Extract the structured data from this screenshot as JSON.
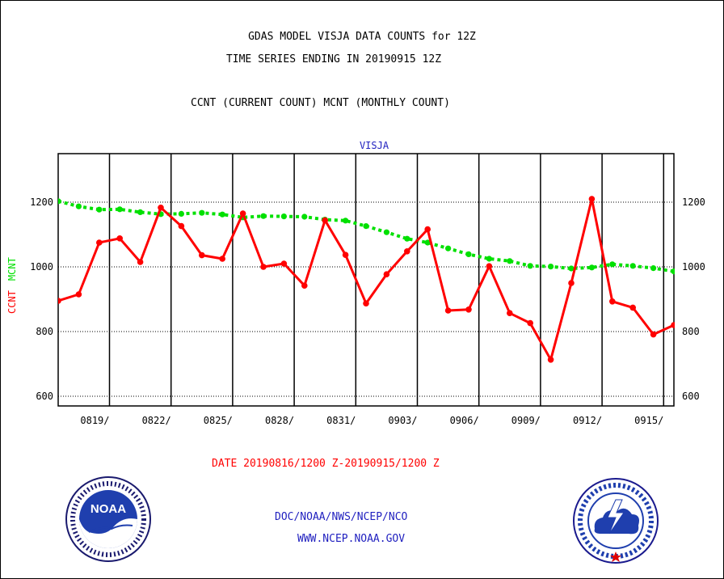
{
  "header": {
    "title_line1": "GDAS MODEL VISJA DATA COUNTS for 12Z",
    "title_line2": "TIME SERIES ENDING IN 20190915 12Z",
    "subtitle": "CCNT (CURRENT COUNT) MCNT (MONTHLY COUNT)"
  },
  "footer": {
    "date_range": "DATE 20190816/1200 Z-20190915/1200 Z",
    "org": "DOC/NOAA/NWS/NCEP/NCO",
    "url": "WWW.NCEP.NOAA.GOV"
  },
  "logos": {
    "noaa": {
      "name": "NOAA",
      "ring_text": "NATIONAL OCEANIC AND ATMOSPHERIC ADMINISTRATION · U.S. DEPARTMENT OF COMMERCE"
    },
    "nws": {
      "ring_text": "NATIONAL WEATHER SERVICE"
    }
  },
  "colors": {
    "ccnt": "#ff0000",
    "mcnt": "#00e000",
    "text_blue": "#1f1fbf",
    "grid": "#000000"
  },
  "chart_data": {
    "type": "line",
    "title": "VISJA",
    "ylabel_left": "CCNT",
    "ylabel_right": "MCNT",
    "ylim": [
      570,
      1350
    ],
    "yticks": [
      600,
      800,
      1000,
      1200
    ],
    "x_range": [
      0,
      30
    ],
    "xticks": [
      {
        "x": 2.5,
        "label": "0819/"
      },
      {
        "x": 5.5,
        "label": "0822/"
      },
      {
        "x": 8.5,
        "label": "0825/"
      },
      {
        "x": 11.5,
        "label": "0828/"
      },
      {
        "x": 14.5,
        "label": "0831/"
      },
      {
        "x": 17.5,
        "label": "0903/"
      },
      {
        "x": 20.5,
        "label": "0906/"
      },
      {
        "x": 23.5,
        "label": "0909/"
      },
      {
        "x": 26.5,
        "label": "0912/"
      },
      {
        "x": 29.5,
        "label": "0915/"
      }
    ],
    "gridlines_x": [
      2.5,
      5.5,
      8.5,
      11.5,
      14.5,
      17.5,
      20.5,
      23.5,
      26.5,
      29.5
    ],
    "grid": true,
    "series": [
      {
        "name": "CCNT",
        "color": "#ff0000",
        "values": [
          895,
          915,
          1075,
          1088,
          1015,
          1183,
          1126,
          1036,
          1025,
          1165,
          1000,
          1010,
          942,
          1144,
          1037,
          887,
          977,
          1048,
          1116,
          865,
          868,
          1002,
          857,
          826,
          713,
          950,
          1210,
          893,
          874,
          791,
          820
        ]
      },
      {
        "name": "MCNT",
        "color": "#00e000",
        "values": [
          1203,
          1187,
          1177,
          1178,
          1169,
          1163,
          1164,
          1167,
          1162,
          1153,
          1157,
          1156,
          1155,
          1146,
          1143,
          1126,
          1107,
          1087,
          1075,
          1057,
          1039,
          1025,
          1018,
          1003,
          1001,
          995,
          998,
          1008,
          1003,
          996,
          986
        ]
      }
    ]
  }
}
